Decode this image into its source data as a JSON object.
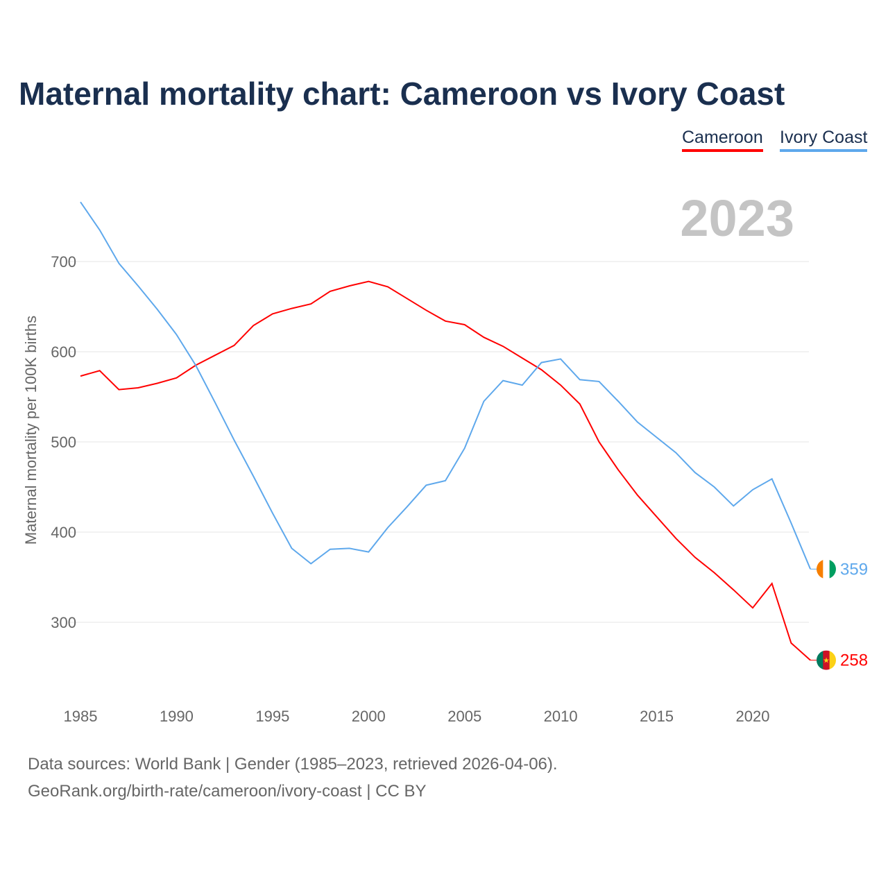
{
  "chart_data": {
    "type": "line",
    "title": "Maternal mortality chart: Cameroon vs Ivory Coast",
    "ylabel": "Maternal mortality per 100K births",
    "xlabel": "",
    "year_label": "2023",
    "x": [
      1985,
      1986,
      1987,
      1988,
      1989,
      1990,
      1991,
      1992,
      1993,
      1994,
      1995,
      1996,
      1997,
      1998,
      1999,
      2000,
      2001,
      2002,
      2003,
      2004,
      2005,
      2006,
      2007,
      2008,
      2009,
      2010,
      2011,
      2012,
      2013,
      2014,
      2015,
      2016,
      2017,
      2018,
      2019,
      2020,
      2021,
      2022,
      2023
    ],
    "xticks": [
      1985,
      1990,
      1995,
      2000,
      2005,
      2010,
      2015,
      2020
    ],
    "yticks": [
      300,
      400,
      500,
      600,
      700
    ],
    "xlim": [
      1985,
      2023
    ],
    "ylim": [
      220,
      790
    ],
    "grid": true,
    "legend_position": "top-right",
    "series": [
      {
        "name": "Cameroon",
        "color": "#ff0000",
        "end_label": "258",
        "flag": "cameroon-flag",
        "values": [
          573,
          579,
          558,
          560,
          565,
          571,
          585,
          596,
          607,
          629,
          642,
          648,
          653,
          667,
          673,
          678,
          672,
          659,
          646,
          634,
          630,
          616,
          606,
          593,
          580,
          563,
          542,
          500,
          469,
          441,
          417,
          393,
          372,
          355,
          336,
          316,
          343,
          277,
          258
        ]
      },
      {
        "name": "Ivory Coast",
        "color": "#5ea8ec",
        "end_label": "359",
        "flag": "ivory-coast-flag",
        "values": [
          766,
          735,
          698,
          673,
          647,
          619,
          585,
          544,
          502,
          462,
          421,
          382,
          365,
          381,
          382,
          378,
          405,
          428,
          452,
          457,
          493,
          545,
          568,
          563,
          588,
          592,
          569,
          567,
          545,
          522,
          505,
          488,
          466,
          450,
          429,
          447,
          459,
          410,
          359
        ]
      }
    ]
  },
  "footer": {
    "line1": "Data sources: World Bank | Gender (1985–2023, retrieved 2026-04-06).",
    "line2": "GeoRank.org/birth-rate/cameroon/ivory-coast | CC BY"
  }
}
